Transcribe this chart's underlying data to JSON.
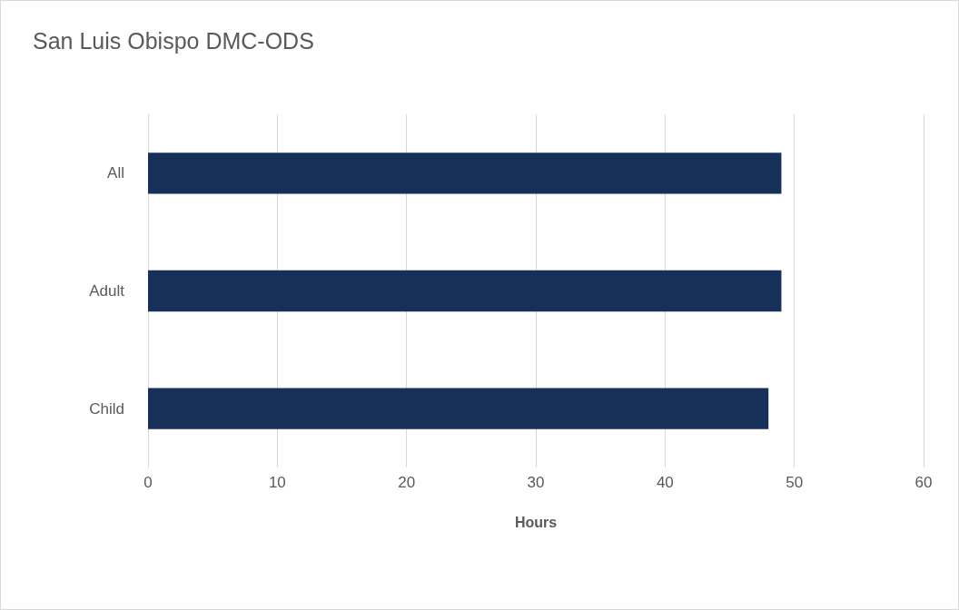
{
  "chart_data": {
    "type": "bar",
    "orientation": "horizontal",
    "title": "San Luis Obispo DMC-ODS",
    "xlabel": "Hours",
    "categories": [
      "All",
      "Adult",
      "Child"
    ],
    "values": [
      49,
      49,
      48
    ],
    "color": "#17305a",
    "xlim": [
      0,
      60
    ],
    "xticks": [
      0,
      10,
      20,
      30,
      40,
      50,
      60
    ],
    "grid": "x"
  }
}
